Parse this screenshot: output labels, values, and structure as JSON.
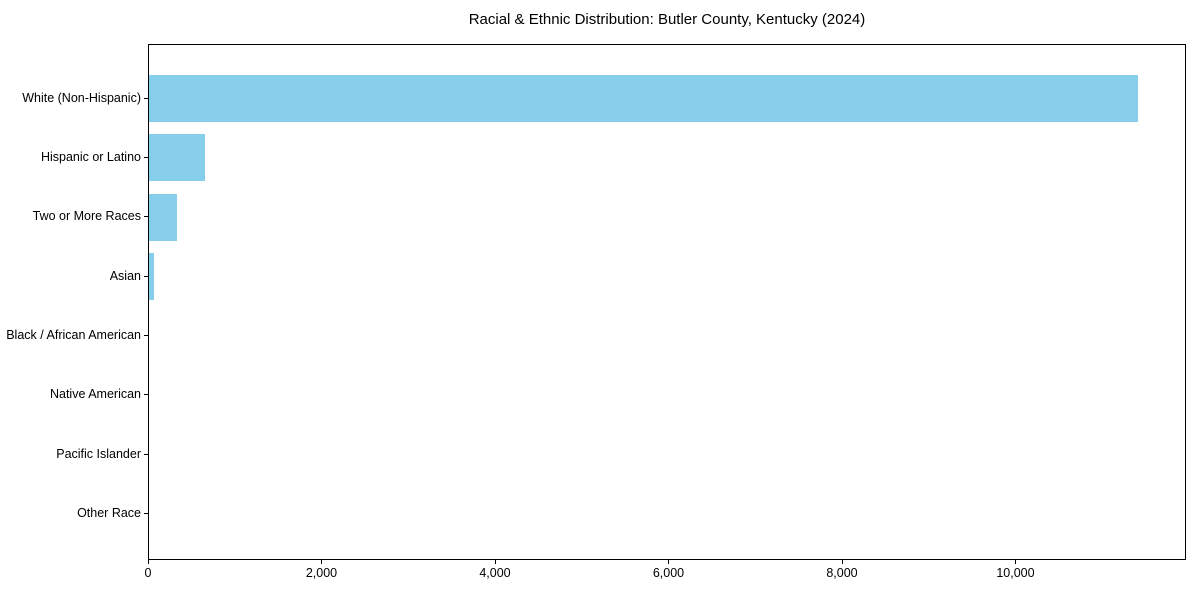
{
  "figure": {
    "background": "#ffffff",
    "text_color": "#000000",
    "axis_color": "#000000"
  },
  "chart_data": {
    "type": "bar",
    "orientation": "horizontal",
    "title": "Racial & Ethnic Distribution: Butler County, Kentucky (2024)",
    "categories": [
      "White (Non-Hispanic)",
      "Hispanic or Latino",
      "Two or More Races",
      "Asian",
      "Black / African American",
      "Native American",
      "Pacific Islander",
      "Other Race"
    ],
    "values": [
      11400,
      650,
      320,
      60,
      0,
      0,
      0,
      0
    ],
    "xlabel": "",
    "ylabel": "",
    "xlim": [
      0,
      11966
    ],
    "xticks": [
      0,
      2000,
      4000,
      6000,
      8000,
      10000
    ],
    "xtick_labels": [
      "0",
      "2,000",
      "4,000",
      "6,000",
      "8,000",
      "10,000"
    ],
    "bar_color": "#87CEEB",
    "grid": false,
    "legend": false
  }
}
